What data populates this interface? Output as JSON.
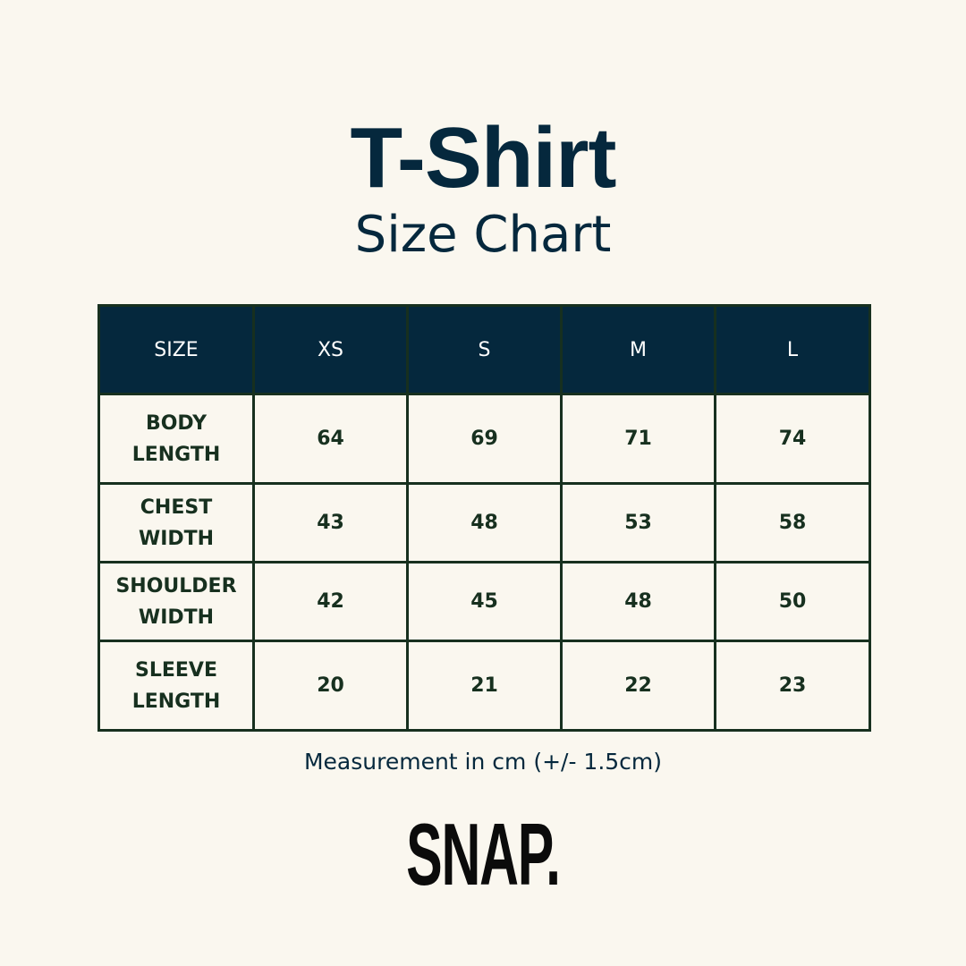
{
  "header": {
    "title": "T-Shirt",
    "subtitle": "Size Chart"
  },
  "table": {
    "columns": [
      "SIZE",
      "XS",
      "S",
      "M",
      "L"
    ],
    "rows": [
      [
        "BODY LENGTH",
        "64",
        "69",
        "71",
        "74"
      ],
      [
        "CHEST WIDTH",
        "43",
        "48",
        "53",
        "58"
      ],
      [
        "SHOULDER WIDTH",
        "42",
        "45",
        "48",
        "50"
      ],
      [
        "SLEEVE LENGTH",
        "20",
        "21",
        "22",
        "23"
      ]
    ]
  },
  "note": "Measurement in cm (+/- 1.5cm)",
  "logo": "SNAP."
}
